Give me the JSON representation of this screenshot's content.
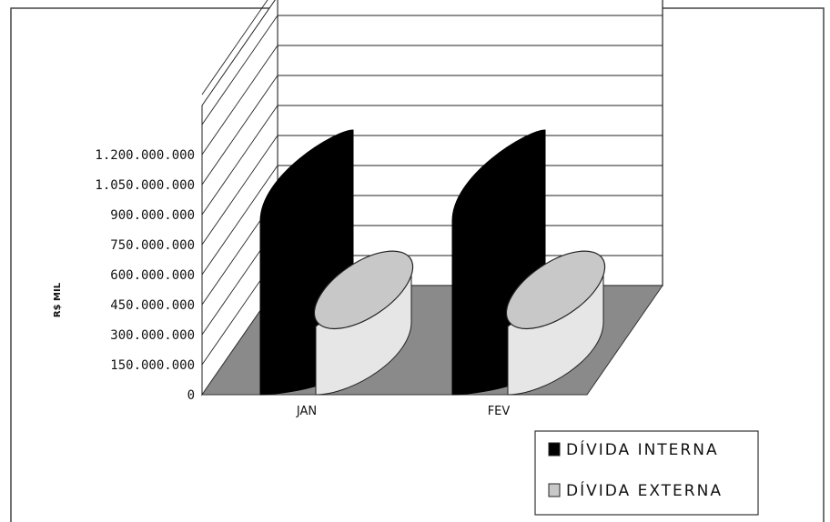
{
  "chart_data": {
    "type": "bar",
    "ylabel": "R$ MIL",
    "categories": [
      "JAN",
      "FEV"
    ],
    "y_ticks": [
      "0",
      "150.000.000",
      "300.000.000",
      "450.000.000",
      "600.000.000",
      "750.000.000",
      "900.000.000",
      "1.050.000.000",
      "1.200.000.000"
    ],
    "ylim": [
      0,
      1200000000
    ],
    "grid": true,
    "legend_position": "bottom-right",
    "series": [
      {
        "name": "DÍVIDA INTERNA",
        "values": [
          1050000000,
          1050000000
        ],
        "color": "#000000"
      },
      {
        "name": "DÍVIDA EXTERNA",
        "values": [
          160000000,
          160000000
        ],
        "color": "#c8c8c8"
      }
    ],
    "colors": {
      "floor": "#8a8a8a",
      "grid": "#222222",
      "border": "#444444"
    }
  }
}
